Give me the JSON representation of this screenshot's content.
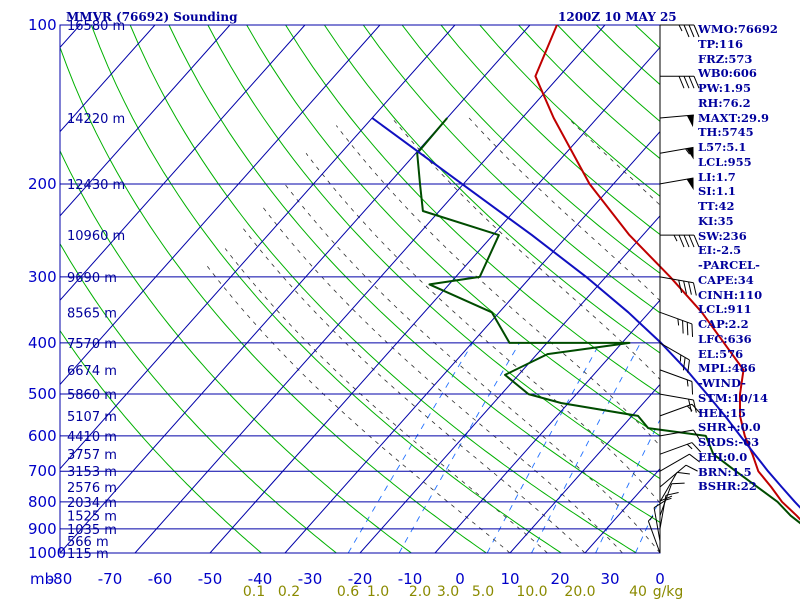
{
  "chart_data": {
    "type": "skew-t log-p sounding",
    "title": "MMVR (76692) Sounding",
    "time": "1200Z 10 MAY 25",
    "y_axis": {
      "unit_label": "mb",
      "scale": "log",
      "range": [
        1000,
        100
      ],
      "ticks": [
        1000,
        900,
        800,
        700,
        600,
        500,
        400,
        300,
        200,
        100
      ],
      "height_labels": [
        {
          "p": 1000,
          "label": "115 m"
        },
        {
          "p": 950,
          "label": "566 m"
        },
        {
          "p": 900,
          "label": "1035 m"
        },
        {
          "p": 850,
          "label": "1525 m"
        },
        {
          "p": 800,
          "label": "2034 m"
        },
        {
          "p": 750,
          "label": "2576 m"
        },
        {
          "p": 700,
          "label": "3153 m"
        },
        {
          "p": 650,
          "label": "3757 m"
        },
        {
          "p": 600,
          "label": "4410 m"
        },
        {
          "p": 550,
          "label": "5107 m"
        },
        {
          "p": 500,
          "label": "5860 m"
        },
        {
          "p": 450,
          "label": "6674 m"
        },
        {
          "p": 400,
          "label": "7570 m"
        },
        {
          "p": 350,
          "label": "8565 m"
        },
        {
          "p": 300,
          "label": "9690 m"
        },
        {
          "p": 250,
          "label": "10960 m"
        },
        {
          "p": 200,
          "label": "12430 m"
        },
        {
          "p": 150,
          "label": "14220 m"
        },
        {
          "p": 100,
          "label": "16580 m"
        }
      ]
    },
    "x_axis": {
      "range": [
        -80,
        0
      ],
      "ticks": [
        "-80",
        "-70",
        "-60",
        "-50",
        "-40",
        "-30",
        "-20",
        "-10",
        "0",
        "10",
        "20",
        "30",
        "0"
      ],
      "mixing_ratio_labels": [
        "0.1",
        "0.2",
        "0.6",
        "1.0",
        "2.0",
        "3.0",
        "5.0",
        "10.0",
        "20.0",
        "40",
        "g/kg"
      ]
    },
    "series": [
      {
        "kind": "temperature",
        "color": "#c00000",
        "points": [
          [
            1000,
            22.8
          ],
          [
            975,
            21.2
          ],
          [
            950,
            20
          ],
          [
            925,
            18.8
          ],
          [
            900,
            17
          ],
          [
            850,
            13.8
          ],
          [
            800,
            10.2
          ],
          [
            750,
            7
          ],
          [
            700,
            3.4
          ],
          [
            650,
            0.6
          ],
          [
            600,
            -2.6
          ],
          [
            550,
            -5.6
          ],
          [
            500,
            -8.2
          ],
          [
            450,
            -10.6
          ],
          [
            400,
            -16.4
          ],
          [
            350,
            -23
          ],
          [
            300,
            -31.4
          ],
          [
            250,
            -41.8
          ],
          [
            200,
            -53.2
          ],
          [
            150,
            -65.8
          ],
          [
            125,
            -73.2
          ],
          [
            100,
            -76.4
          ]
        ]
      },
      {
        "kind": "dewpoint",
        "color": "#004c00",
        "points": [
          [
            1000,
            20.4
          ],
          [
            950,
            18.4
          ],
          [
            900,
            16.8
          ],
          [
            850,
            13
          ],
          [
            800,
            9.6
          ],
          [
            700,
            0.4
          ],
          [
            650,
            -4.6
          ],
          [
            600,
            -7.8
          ],
          [
            580,
            -16.4
          ],
          [
            550,
            -19.2
          ],
          [
            520,
            -31
          ],
          [
            500,
            -36.4
          ],
          [
            460,
            -41.8
          ],
          [
            420,
            -38.6
          ],
          [
            400,
            -29
          ],
          [
            400,
            -45
          ],
          [
            350,
            -51
          ],
          [
            310,
            -62.6
          ],
          [
            300,
            -56.8
          ],
          [
            250,
            -59.2
          ],
          [
            225,
            -72.2
          ],
          [
            200,
            -75.8
          ],
          [
            175,
            -79.8
          ],
          [
            150,
            -80
          ]
        ]
      },
      {
        "kind": "parcel",
        "color": "#1010c0",
        "points": [
          [
            1000,
            25.2
          ],
          [
            950,
            21.6
          ],
          [
            911,
            19.4
          ],
          [
            850,
            15.3
          ],
          [
            800,
            11.9
          ],
          [
            750,
            8.4
          ],
          [
            700,
            4.7
          ],
          [
            650,
            0.9
          ],
          [
            600,
            -3.2
          ],
          [
            550,
            -7.6
          ],
          [
            500,
            -12.6
          ],
          [
            450,
            -18.2
          ],
          [
            400,
            -24.8
          ],
          [
            350,
            -32.8
          ],
          [
            300,
            -42.6
          ],
          [
            250,
            -54.8
          ],
          [
            200,
            -70.2
          ],
          [
            150,
            -90
          ]
        ]
      }
    ],
    "wind_barbs": [
      {
        "p": 1000,
        "dir": 160,
        "spd": 5
      },
      {
        "p": 950,
        "dir": 170,
        "spd": 10
      },
      {
        "p": 925,
        "dir": 180,
        "spd": 10
      },
      {
        "p": 900,
        "dir": 190,
        "spd": 15
      },
      {
        "p": 850,
        "dir": 200,
        "spd": 10
      },
      {
        "p": 800,
        "dir": 210,
        "spd": 10
      },
      {
        "p": 750,
        "dir": 230,
        "spd": 10
      },
      {
        "p": 700,
        "dir": 240,
        "spd": 10
      },
      {
        "p": 650,
        "dir": 250,
        "spd": 15
      },
      {
        "p": 600,
        "dir": 260,
        "spd": 10
      },
      {
        "p": 550,
        "dir": 250,
        "spd": 15
      },
      {
        "p": 500,
        "dir": 280,
        "spd": 20
      },
      {
        "p": 450,
        "dir": 290,
        "spd": 15
      },
      {
        "p": 400,
        "dir": 300,
        "spd": 25
      },
      {
        "p": 350,
        "dir": 290,
        "spd": 35
      },
      {
        "p": 300,
        "dir": 280,
        "spd": 40
      },
      {
        "p": 250,
        "dir": 270,
        "spd": 45
      },
      {
        "p": 200,
        "dir": 260,
        "spd": 50
      },
      {
        "p": 175,
        "dir": 260,
        "spd": 55
      },
      {
        "p": 150,
        "dir": 265,
        "spd": 50
      },
      {
        "p": 125,
        "dir": 270,
        "spd": 40
      },
      {
        "p": 100,
        "dir": 270,
        "spd": 35
      }
    ],
    "grid": true
  },
  "indices": [
    "WMO:76692",
    "TP:116",
    "FRZ:573",
    "WB0:606",
    "PW:1.95",
    "RH:76.2",
    "MAXT:29.9",
    "TH:5745",
    "L57:5.1",
    "LCL:955",
    "LI:1.7",
    "SI:1.1",
    "TT:42",
    "KI:35",
    "SW:236",
    "EI:-2.5",
    "-PARCEL-",
    "CAPE:34",
    "CINH:110",
    "LCL:911",
    "CAP:2.2",
    "LFC:636",
    "EL:576",
    "MPL:486",
    "-WIND-",
    "STM:10/14",
    "HEL:15",
    "SHR+:0.0",
    "SRDS:-63",
    "EHI:0.0",
    "BRN:1.5",
    "BSHR:22"
  ],
  "colors": {
    "isobar": "#0000a8",
    "isotherm": "#0000a8",
    "dry_adiabat": "#00b000",
    "moist_adiabat": "#303030",
    "mixing_ratio": "#2070ff",
    "temperature": "#c00000",
    "dewpoint": "#004c00",
    "parcel": "#1010c0",
    "text": "#00009c"
  }
}
